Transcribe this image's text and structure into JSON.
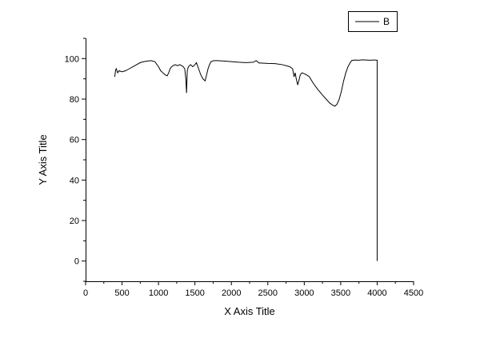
{
  "chart_data": {
    "type": "line",
    "xlabel": "X Axis Title",
    "ylabel": "Y Axis Title",
    "xlim": [
      0,
      4500
    ],
    "ylim": [
      -10,
      110
    ],
    "xticks": [
      0,
      500,
      1000,
      1500,
      2000,
      2500,
      3000,
      3500,
      4000,
      4500
    ],
    "yticks": [
      0,
      20,
      40,
      60,
      80,
      100
    ],
    "grid": false,
    "legend_position": "top-right",
    "series": [
      {
        "name": "B",
        "color": "#000000",
        "x": [
          400,
          410,
          420,
          440,
          460,
          500,
          550,
          600,
          650,
          700,
          750,
          800,
          850,
          900,
          950,
          1000,
          1030,
          1060,
          1090,
          1120,
          1140,
          1160,
          1180,
          1200,
          1230,
          1260,
          1290,
          1320,
          1340,
          1360,
          1375,
          1385,
          1395,
          1410,
          1440,
          1470,
          1500,
          1520,
          1550,
          1580,
          1610,
          1640,
          1660,
          1680,
          1700,
          1720,
          1760,
          1800,
          1900,
          2000,
          2100,
          2200,
          2300,
          2340,
          2360,
          2380,
          2400,
          2500,
          2600,
          2700,
          2800,
          2840,
          2860,
          2875,
          2890,
          2910,
          2925,
          2945,
          2970,
          3000,
          3030,
          3070,
          3120,
          3180,
          3250,
          3300,
          3350,
          3390,
          3420,
          3450,
          3480,
          3510,
          3540,
          3570,
          3600,
          3630,
          3650,
          3670,
          3700,
          3750,
          3800,
          3850,
          3900,
          3950,
          3980,
          3990,
          4000,
          4000
        ],
        "y": [
          91,
          94,
          95,
          93,
          94,
          93.5,
          94,
          95,
          96,
          97,
          98,
          98.5,
          98.8,
          99,
          98.5,
          96,
          94,
          93,
          92,
          91.5,
          93,
          95,
          96,
          96.5,
          97,
          96.5,
          97,
          96.5,
          96,
          95,
          90,
          83,
          94,
          96,
          97,
          96,
          97,
          98,
          95,
          92,
          90,
          89,
          92,
          95,
          97,
          98.5,
          99,
          99,
          98.8,
          98.5,
          98.2,
          98,
          98.2,
          99,
          98.4,
          97.8,
          97.8,
          97.6,
          97.5,
          97,
          96,
          95,
          91,
          93,
          90,
          87,
          89,
          92,
          93,
          92.5,
          92,
          91,
          88,
          85,
          82,
          80,
          78,
          77,
          76.5,
          77.5,
          80,
          84,
          89,
          93,
          96,
          98,
          99,
          99.2,
          99.3,
          99.2,
          99.4,
          99.3,
          99.2,
          99.3,
          99.3,
          99.2,
          99.2,
          0
        ]
      }
    ]
  }
}
